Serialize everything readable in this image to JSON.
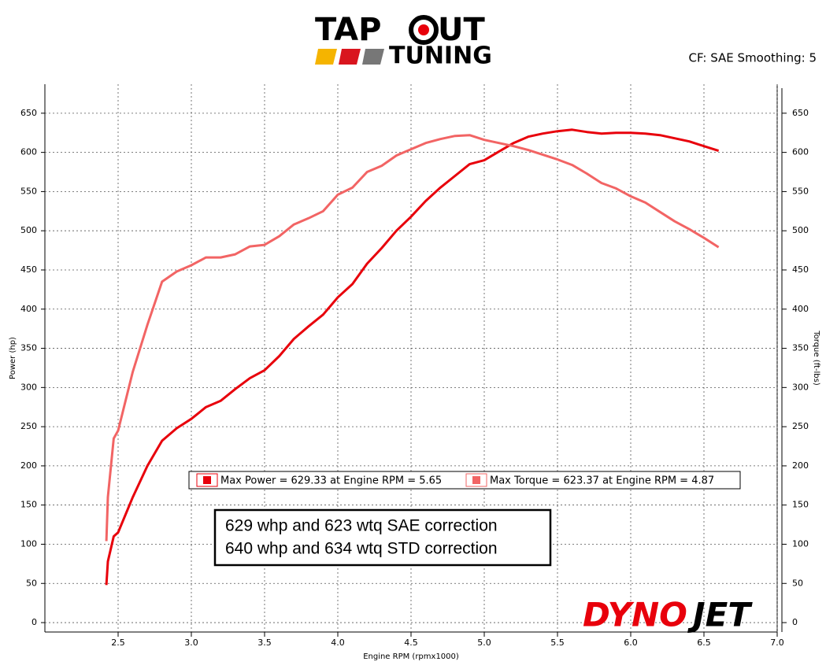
{
  "chart_data": {
    "type": "line",
    "brand": {
      "top_left": "TAP",
      "top_right": "UT",
      "bottom": "TUNING"
    },
    "header_note": "CF: SAE Smoothing: 5",
    "y_label": "Power (hp)",
    "y2_label": "Torque (ft-lbs)",
    "x_label": "Engine RPM (rpmx1000)",
    "xlim": [
      2.0,
      7.0
    ],
    "xticks": [
      2.5,
      {
        "value": 3,
        "label": "3.0"
      },
      3.5,
      {
        "value": 4,
        "label": "4.0"
      },
      4.5,
      {
        "value": 5,
        "label": "5.0"
      },
      5.5,
      {
        "value": 6,
        "label": "6.0"
      },
      6.5,
      {
        "value": 7,
        "label": "7.0"
      }
    ],
    "ylim": [
      -12,
      687
    ],
    "yticks": [
      0,
      50,
      100,
      150,
      200,
      250,
      300,
      350,
      400,
      450,
      500,
      550,
      600,
      650
    ],
    "y2lim": [
      -12,
      687
    ],
    "y2ticks": [
      0,
      50,
      100,
      150,
      200,
      250,
      300,
      350,
      400,
      450,
      500,
      550,
      600,
      650
    ],
    "grid": true,
    "series": [
      {
        "name": "Max Power = 629.33 at Engine RPM = 5.65",
        "color": "#e8000b",
        "x": [
          2.42,
          2.43,
          2.47,
          2.5,
          2.6,
          2.7,
          2.8,
          2.9,
          3.0,
          3.1,
          3.2,
          3.3,
          3.4,
          3.5,
          3.6,
          3.7,
          3.8,
          3.9,
          4.0,
          4.1,
          4.2,
          4.3,
          4.4,
          4.5,
          4.6,
          4.7,
          4.8,
          4.9,
          5.0,
          5.1,
          5.2,
          5.3,
          5.4,
          5.5,
          5.6,
          5.7,
          5.8,
          5.9,
          6.0,
          6.1,
          6.2,
          6.3,
          6.4,
          6.5,
          6.6
        ],
        "values": [
          48,
          78,
          110,
          115,
          160,
          200,
          232,
          248,
          260,
          275,
          283,
          298,
          312,
          322,
          340,
          362,
          378,
          393,
          415,
          432,
          458,
          478,
          500,
          518,
          538,
          555,
          570,
          585,
          590,
          601,
          612,
          620,
          624,
          627,
          629,
          626,
          624,
          625,
          625,
          624,
          622,
          618,
          614,
          608,
          602
        ]
      },
      {
        "name": "Max Torque = 623.37 at Engine RPM = 4.87",
        "color": "#f26464",
        "axis": "y2",
        "x": [
          2.42,
          2.43,
          2.47,
          2.5,
          2.6,
          2.7,
          2.8,
          2.9,
          3.0,
          3.1,
          3.2,
          3.3,
          3.4,
          3.5,
          3.6,
          3.7,
          3.8,
          3.9,
          4.0,
          4.1,
          4.2,
          4.3,
          4.4,
          4.5,
          4.6,
          4.7,
          4.8,
          4.9,
          5.0,
          5.1,
          5.2,
          5.3,
          5.4,
          5.5,
          5.6,
          5.7,
          5.8,
          5.9,
          6.0,
          6.1,
          6.2,
          6.3,
          6.4,
          6.5,
          6.6
        ],
        "values": [
          104,
          160,
          235,
          245,
          320,
          380,
          435,
          448,
          456,
          466,
          466,
          470,
          480,
          482,
          493,
          508,
          516,
          525,
          546,
          555,
          575,
          583,
          596,
          604,
          612,
          617,
          621,
          622,
          616,
          612,
          608,
          603,
          597,
          591,
          584,
          573,
          561,
          554,
          544,
          536,
          524,
          512,
          502,
          491,
          479
        ]
      }
    ],
    "annotations": [
      "629 whp and 623 wtq SAE correction",
      "640 whp and 634 wtq STD correction"
    ],
    "watermark": {
      "left": "DYNO",
      "right": "JET"
    }
  }
}
